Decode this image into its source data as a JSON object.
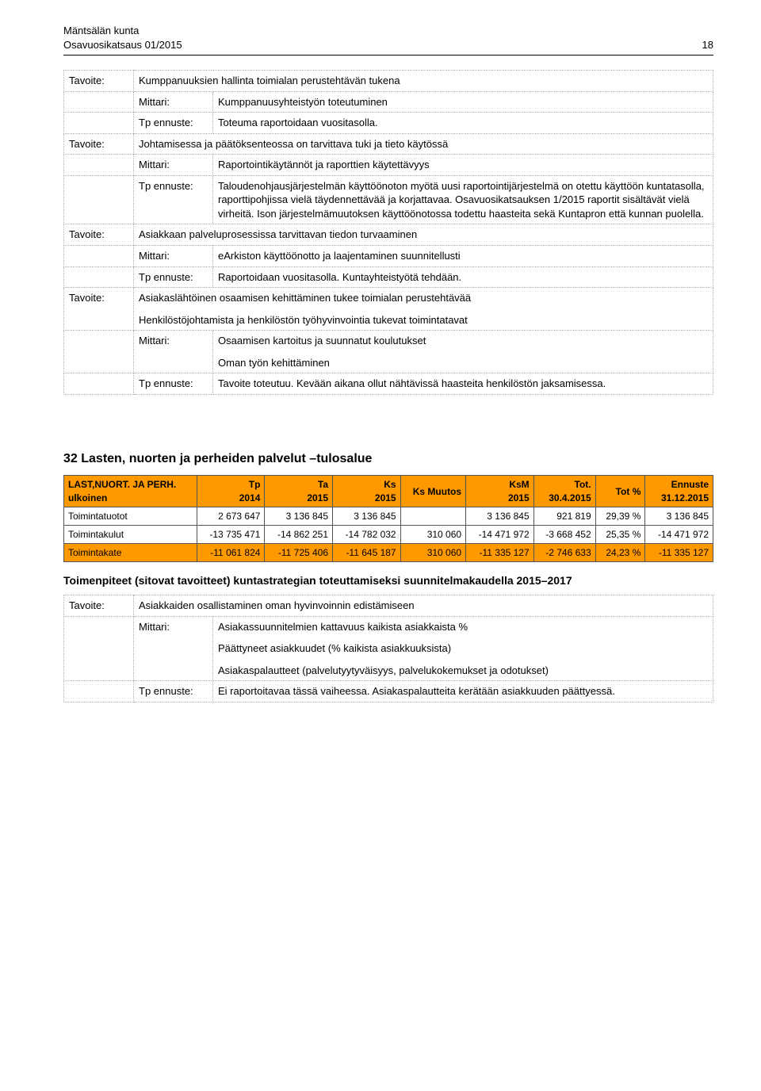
{
  "header": {
    "org": "Mäntsälän kunta",
    "doc": "Osavuosikatsaus 01/2015",
    "page": "18"
  },
  "goals": [
    {
      "tavoite": "Kumppanuuksien hallinta toimialan perustehtävän tukena",
      "mittari": "Kumppanuusyhteistyön toteutuminen",
      "tp": "Toteuma raportoidaan vuositasolla."
    },
    {
      "tavoite": "Johtamisessa ja päätöksenteossa on tarvittava tuki ja tieto käytössä",
      "mittari": "Raportointikäytännöt ja raporttien käytettävyys",
      "tp": "Taloudenohjausjärjestelmän käyttöönoton myötä uusi raportointijärjestelmä on otettu käyttöön kuntatasolla, raporttipohjissa vielä täydennettävää ja korjattavaa. Osavuosikatsauksen 1/2015 raportit sisältävät vielä virheitä. Ison järjestelmämuutoksen käyttöönotossa todettu haasteita sekä Kuntapron että kunnan puolella."
    },
    {
      "tavoite": "Asiakkaan palveluprosessissa tarvittavan tiedon turvaaminen",
      "mittari": "eArkiston käyttöönotto ja laajentaminen suunnitellusti",
      "tp": "Raportoidaan vuositasolla. Kuntayhteistyötä tehdään."
    },
    {
      "tavoite": "Asiakaslähtöinen osaamisen kehittäminen tukee toimialan perustehtävää",
      "tavoite2": "Henkilöstöjohtamista ja henkilöstön työhyvinvointia tukevat toimintatavat",
      "mittari": "Osaamisen kartoitus ja suunnatut koulutukset",
      "mittari2": "Oman työn kehittäminen",
      "tp": "Tavoite toteutuu. Kevään aikana ollut nähtävissä haasteita henkilöstön jaksamisessa."
    }
  ],
  "labels": {
    "tavoite": "Tavoite:",
    "mittari": "Mittari:",
    "tp": "Tp ennuste:"
  },
  "section2_title": "32 Lasten, nuorten ja perheiden palvelut –tulosalue",
  "fin": {
    "head": {
      "c1a": "LAST,NUORT. JA PERH.",
      "c1b": "ulkoinen",
      "c2a": "Tp",
      "c2b": "2014",
      "c3a": "Ta",
      "c3b": "2015",
      "c4a": "Ks",
      "c4b": "2015",
      "c5a": "Ks Muutos",
      "c5b": "",
      "c6a": "KsM",
      "c6b": "2015",
      "c7a": "Tot.",
      "c7b": "30.4.2015",
      "c8a": "Tot %",
      "c8b": "",
      "c9a": "Ennuste",
      "c9b": "31.12.2015"
    },
    "rows": [
      {
        "label": "Toimintatuotot",
        "v": [
          "2 673 647",
          "3 136 845",
          "3 136 845",
          "",
          "3 136 845",
          "921 819",
          "29,39 %",
          "3 136 845"
        ]
      },
      {
        "label": "Toimintakulut",
        "v": [
          "-13 735 471",
          "-14 862 251",
          "-14 782 032",
          "310 060",
          "-14 471 972",
          "-3 668 452",
          "25,35 %",
          "-14 471 972"
        ]
      }
    ],
    "kate": {
      "label": "Toimintakate",
      "v": [
        "-11 061 824",
        "-11 725 406",
        "-11 645 187",
        "310 060",
        "-11 335 127",
        "-2 746 633",
        "24,23 %",
        "-11 335 127"
      ]
    }
  },
  "colors": {
    "orange": "#ff9900",
    "dot": "#b0b0b0",
    "text": "#000000",
    "bg": "#ffffff"
  },
  "sub_heading": "Toimenpiteet (sitovat tavoitteet) kuntastrategian toteuttamiseksi suunnitelmakaudella 2015–2017",
  "goal2": {
    "tavoite": "Asiakkaiden osallistaminen oman hyvinvoinnin edistämiseen",
    "mittari1": "Asiakassuunnitelmien kattavuus kaikista asiakkaista %",
    "mittari2": "Päättyneet asiakkuudet (% kaikista asiakkuuksista)",
    "mittari3": "Asiakaspalautteet (palvelutyytyväisyys, palvelukokemukset ja odotukset)",
    "tp": "Ei raportoitavaa tässä vaiheessa. Asiakaspalautteita kerätään asiakkuuden päättyessä."
  }
}
